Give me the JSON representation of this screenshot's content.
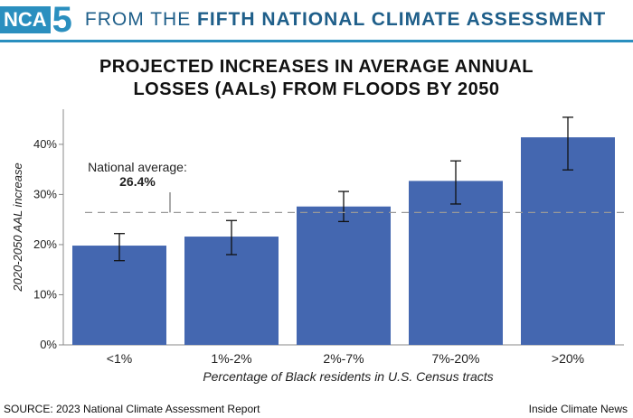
{
  "header": {
    "logo_nca": "NCA",
    "logo_number": "5",
    "prefix": "FROM THE ",
    "bold": "FIFTH NATIONAL CLIMATE ASSESSMENT"
  },
  "colors": {
    "brand": "#2a8fbf",
    "header_text": "#1f5f8a",
    "bar": "#4467b0",
    "reference_line": "#999999"
  },
  "title_lines": [
    "PROJECTED INCREASES IN AVERAGE ANNUAL",
    "LOSSES (AALs) FROM FLOODS BY 2050"
  ],
  "chart_data": {
    "type": "bar",
    "title": "PROJECTED INCREASES IN AVERAGE ANNUAL LOSSES (AALs) FROM FLOODS BY 2050",
    "categories": [
      "<1%",
      "1%-2%",
      "2%-7%",
      "7%-20%",
      ">20%"
    ],
    "values": [
      19.8,
      21.6,
      27.6,
      32.7,
      41.4
    ],
    "error_low": [
      16.8,
      18.0,
      24.6,
      28.1,
      34.9
    ],
    "error_high": [
      22.2,
      24.8,
      30.6,
      36.7,
      45.4
    ],
    "xlabel": "Percentage of Black residents in U.S. Census tracts",
    "ylabel": "2020-2050 AAL increase",
    "yticks": [
      0,
      10,
      20,
      30,
      40
    ],
    "ytick_labels": [
      "0%",
      "10%",
      "20%",
      "30%",
      "40%"
    ],
    "ylim": [
      0,
      47
    ],
    "reference_line": {
      "value": 26.4,
      "label": "National average:",
      "value_label": "26.4%"
    },
    "grid": false,
    "legend": "none"
  },
  "footer": {
    "source": "SOURCE: 2023 National Climate Assessment Report",
    "credit": "Inside Climate News"
  }
}
